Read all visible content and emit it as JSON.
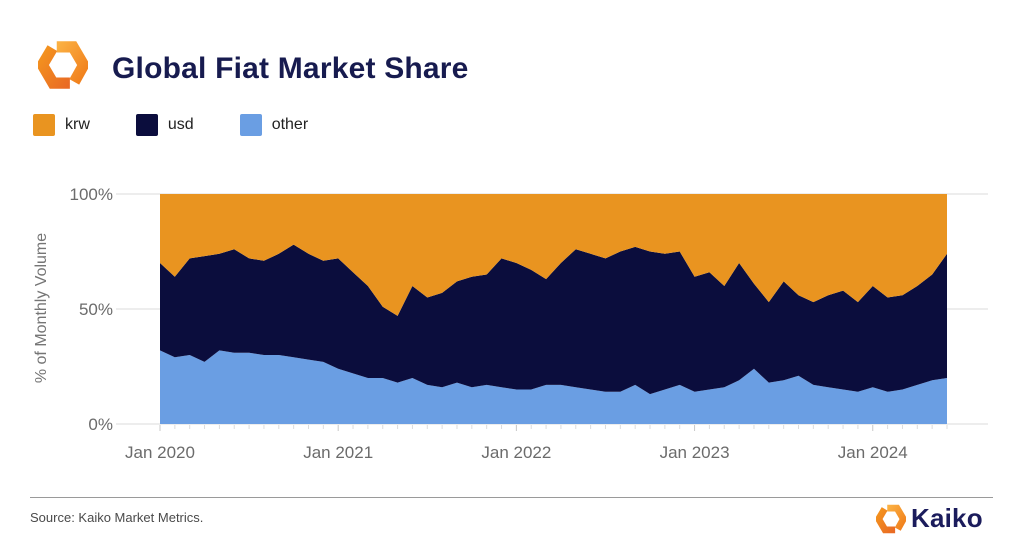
{
  "header": {
    "title": "Global Fiat Market Share"
  },
  "legend": [
    {
      "label": "krw",
      "color": "#E99420"
    },
    {
      "label": "usd",
      "color": "#0B0D3D"
    },
    {
      "label": "other",
      "color": "#6A9EE3"
    }
  ],
  "chart_data": {
    "type": "area",
    "stacked": true,
    "title": "Global Fiat Market Share",
    "ylabel": "% of Monthly Volume",
    "ylim": [
      0,
      100
    ],
    "grid": "horizontal",
    "legend_position": "top-left",
    "y_tick_labels": [
      "100%",
      "50%",
      "0%"
    ],
    "x_tick_labels": [
      "Jan 2020",
      "Jan 2021",
      "Jan 2022",
      "Jan 2023",
      "Jan 2024"
    ],
    "x_tick_month_indices": [
      0,
      12,
      24,
      36,
      48
    ],
    "months": [
      "2020-01",
      "2020-02",
      "2020-03",
      "2020-04",
      "2020-05",
      "2020-06",
      "2020-07",
      "2020-08",
      "2020-09",
      "2020-10",
      "2020-11",
      "2020-12",
      "2021-01",
      "2021-02",
      "2021-03",
      "2021-04",
      "2021-05",
      "2021-06",
      "2021-07",
      "2021-08",
      "2021-09",
      "2021-10",
      "2021-11",
      "2021-12",
      "2022-01",
      "2022-02",
      "2022-03",
      "2022-04",
      "2022-05",
      "2022-06",
      "2022-07",
      "2022-08",
      "2022-09",
      "2022-10",
      "2022-11",
      "2022-12",
      "2023-01",
      "2023-02",
      "2023-03",
      "2023-04",
      "2023-05",
      "2023-06",
      "2023-07",
      "2023-08",
      "2023-09",
      "2023-10",
      "2023-11",
      "2023-12",
      "2024-01",
      "2024-02",
      "2024-03",
      "2024-04",
      "2024-05",
      "2024-06"
    ],
    "stack_order_bottom_to_top": [
      "other",
      "usd",
      "krw"
    ],
    "series": [
      {
        "name": "other",
        "color": "#6A9EE3",
        "values": [
          32,
          29,
          30,
          27,
          32,
          31,
          31,
          30,
          30,
          29,
          28,
          27,
          24,
          22,
          20,
          20,
          18,
          20,
          17,
          16,
          18,
          16,
          17,
          16,
          15,
          15,
          17,
          17,
          16,
          15,
          14,
          14,
          17,
          13,
          15,
          17,
          14,
          15,
          16,
          19,
          24,
          18,
          19,
          21,
          17,
          16,
          15,
          14,
          16,
          14,
          15,
          17,
          19,
          20
        ]
      },
      {
        "name": "usd",
        "color": "#0B0D3D",
        "values": [
          38,
          35,
          42,
          46,
          42,
          45,
          41,
          41,
          44,
          49,
          46,
          44,
          48,
          44,
          40,
          31,
          29,
          40,
          38,
          41,
          44,
          48,
          48,
          56,
          55,
          52,
          46,
          53,
          60,
          59,
          58,
          61,
          60,
          62,
          59,
          58,
          50,
          51,
          44,
          51,
          37,
          35,
          43,
          35,
          36,
          40,
          43,
          39,
          44,
          41,
          41,
          43,
          46,
          54
        ]
      },
      {
        "name": "krw",
        "color": "#E99420",
        "values": [
          30,
          36,
          28,
          27,
          26,
          24,
          28,
          29,
          26,
          22,
          26,
          29,
          28,
          34,
          40,
          49,
          53,
          40,
          45,
          43,
          38,
          36,
          35,
          28,
          30,
          33,
          37,
          30,
          24,
          26,
          28,
          25,
          23,
          25,
          26,
          25,
          36,
          34,
          40,
          30,
          39,
          47,
          38,
          44,
          47,
          44,
          42,
          47,
          40,
          45,
          44,
          40,
          35,
          26
        ]
      }
    ]
  },
  "footer": {
    "source": "Source: Kaiko Market Metrics.",
    "brand": "Kaiko"
  }
}
